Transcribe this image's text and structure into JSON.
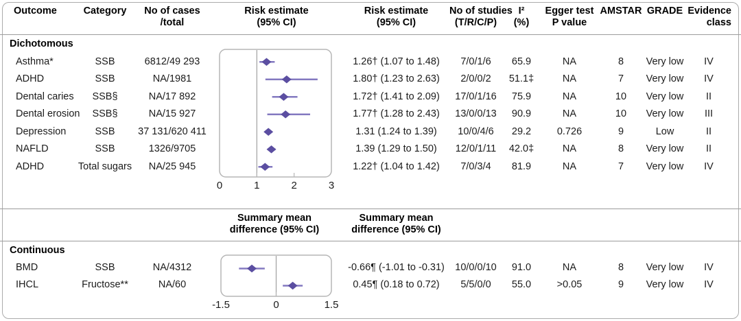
{
  "colors": {
    "diamond": "#5b4ea1",
    "ci_line": "#8379c0",
    "ref_line": "#9f9f9f",
    "plot_border": "#b6b6b6",
    "divider": "#9b9b9b",
    "frame_border": "#ababab",
    "text": "#1b1b1b"
  },
  "headers": [
    {
      "line1": "Outcome",
      "line2": ""
    },
    {
      "line1": "Category",
      "line2": ""
    },
    {
      "line1": "No of cases",
      "line2": "/total"
    },
    {
      "line1": "Risk estimate",
      "line2": "(95% CI)"
    },
    {
      "line1": "Risk estimate",
      "line2": "(95% CI)"
    },
    {
      "line1": "No of studies",
      "line2": "(T/R/C/P)"
    },
    {
      "line1": "I²",
      "line2": "(%)"
    },
    {
      "line1": "Egger test",
      "line2": "P value"
    },
    {
      "line1": "AMSTAR",
      "line2": ""
    },
    {
      "line1": "GRADE",
      "line2": ""
    },
    {
      "line1": "Evidence",
      "line2": "class"
    }
  ],
  "mid_header": {
    "line1": "Summary mean",
    "line2": "difference (95% CI)"
  },
  "sections": [
    {
      "label": "Dichotomous",
      "rows": [
        {
          "outcome": "Asthma*",
          "category": "SSB",
          "cases": "6812/49 293",
          "estimate": "1.26† (1.07 to 1.48)",
          "studies": "7/0/1/6",
          "i2": "65.9",
          "egger": "NA",
          "amstar": "8",
          "grade": "Very low",
          "class": "IV"
        },
        {
          "outcome": "ADHD",
          "category": "SSB",
          "cases": "NA/1981",
          "estimate": "1.80† (1.23 to 2.63)",
          "studies": "2/0/0/2",
          "i2": "51.1‡",
          "egger": "NA",
          "amstar": "7",
          "grade": "Very low",
          "class": "IV"
        },
        {
          "outcome": "Dental caries",
          "category": "SSB§",
          "cases": "NA/17 892",
          "estimate": "1.72† (1.41 to 2.09)",
          "studies": "17/0/1/16",
          "i2": "75.9",
          "egger": "NA",
          "amstar": "10",
          "grade": "Very low",
          "class": "II"
        },
        {
          "outcome": "Dental erosion",
          "category": "SSB§",
          "cases": "NA/15 927",
          "estimate": "1.77† (1.28 to 2.43)",
          "studies": "13/0/0/13",
          "i2": "90.9",
          "egger": "NA",
          "amstar": "10",
          "grade": "Very low",
          "class": "III"
        },
        {
          "outcome": "Depression",
          "category": "SSB",
          "cases": "37 131/620 411",
          "estimate": "1.31 (1.24 to 1.39)",
          "studies": "10/0/4/6",
          "i2": "29.2",
          "egger": "0.726",
          "amstar": "9",
          "grade": "Low",
          "class": "II"
        },
        {
          "outcome": "NAFLD",
          "category": "SSB",
          "cases": "1326/9705",
          "estimate": "1.39 (1.29 to 1.50)",
          "studies": "12/0/1/11",
          "i2": "42.0‡",
          "egger": "NA",
          "amstar": "8",
          "grade": "Very low",
          "class": "II"
        },
        {
          "outcome": "ADHD",
          "category": "Total sugars",
          "cases": "NA/25 945",
          "estimate": "1.22† (1.04 to 1.42)",
          "studies": "7/0/3/4",
          "i2": "81.9",
          "egger": "NA",
          "amstar": "7",
          "grade": "Very low",
          "class": "IV"
        }
      ]
    },
    {
      "label": "Continuous",
      "rows": [
        {
          "outcome": "BMD",
          "category": "SSB",
          "cases": "NA/4312",
          "estimate": "-0.66¶ (-1.01 to -0.31)",
          "studies": "10/0/0/10",
          "i2": "91.0",
          "egger": "NA",
          "amstar": "8",
          "grade": "Very low",
          "class": "IV"
        },
        {
          "outcome": "IHCL",
          "category": "Fructose**",
          "cases": "NA/60",
          "estimate": "0.45¶ (0.18 to 0.72)",
          "studies": "5/5/0/0",
          "i2": "55.0",
          "egger": ">0.05",
          "amstar": "9",
          "grade": "Very low",
          "class": "IV"
        }
      ]
    }
  ],
  "chart_data": [
    {
      "type": "forest",
      "section": "Dichotomous",
      "title": "Risk estimate (95% CI)",
      "xlim": [
        0,
        3
      ],
      "ticks": [
        0,
        1,
        2,
        3
      ],
      "ref_line": 1,
      "points": [
        {
          "outcome": "Asthma*",
          "est": 1.26,
          "lo": 1.07,
          "hi": 1.48
        },
        {
          "outcome": "ADHD",
          "est": 1.8,
          "lo": 1.23,
          "hi": 2.63
        },
        {
          "outcome": "Dental caries",
          "est": 1.72,
          "lo": 1.41,
          "hi": 2.09
        },
        {
          "outcome": "Dental erosion",
          "est": 1.77,
          "lo": 1.28,
          "hi": 2.43
        },
        {
          "outcome": "Depression",
          "est": 1.31,
          "lo": 1.24,
          "hi": 1.39
        },
        {
          "outcome": "NAFLD",
          "est": 1.39,
          "lo": 1.29,
          "hi": 1.5
        },
        {
          "outcome": "ADHD (Total sugars)",
          "est": 1.22,
          "lo": 1.04,
          "hi": 1.42
        }
      ]
    },
    {
      "type": "forest",
      "section": "Continuous",
      "title": "Summary mean difference (95% CI)",
      "xlim": [
        -1.5,
        1.5
      ],
      "ticks": [
        -1.5,
        0,
        1.5
      ],
      "ref_line": 0,
      "points": [
        {
          "outcome": "BMD",
          "est": -0.66,
          "lo": -1.01,
          "hi": -0.31
        },
        {
          "outcome": "IHCL",
          "est": 0.45,
          "lo": 0.18,
          "hi": 0.72
        }
      ]
    }
  ]
}
